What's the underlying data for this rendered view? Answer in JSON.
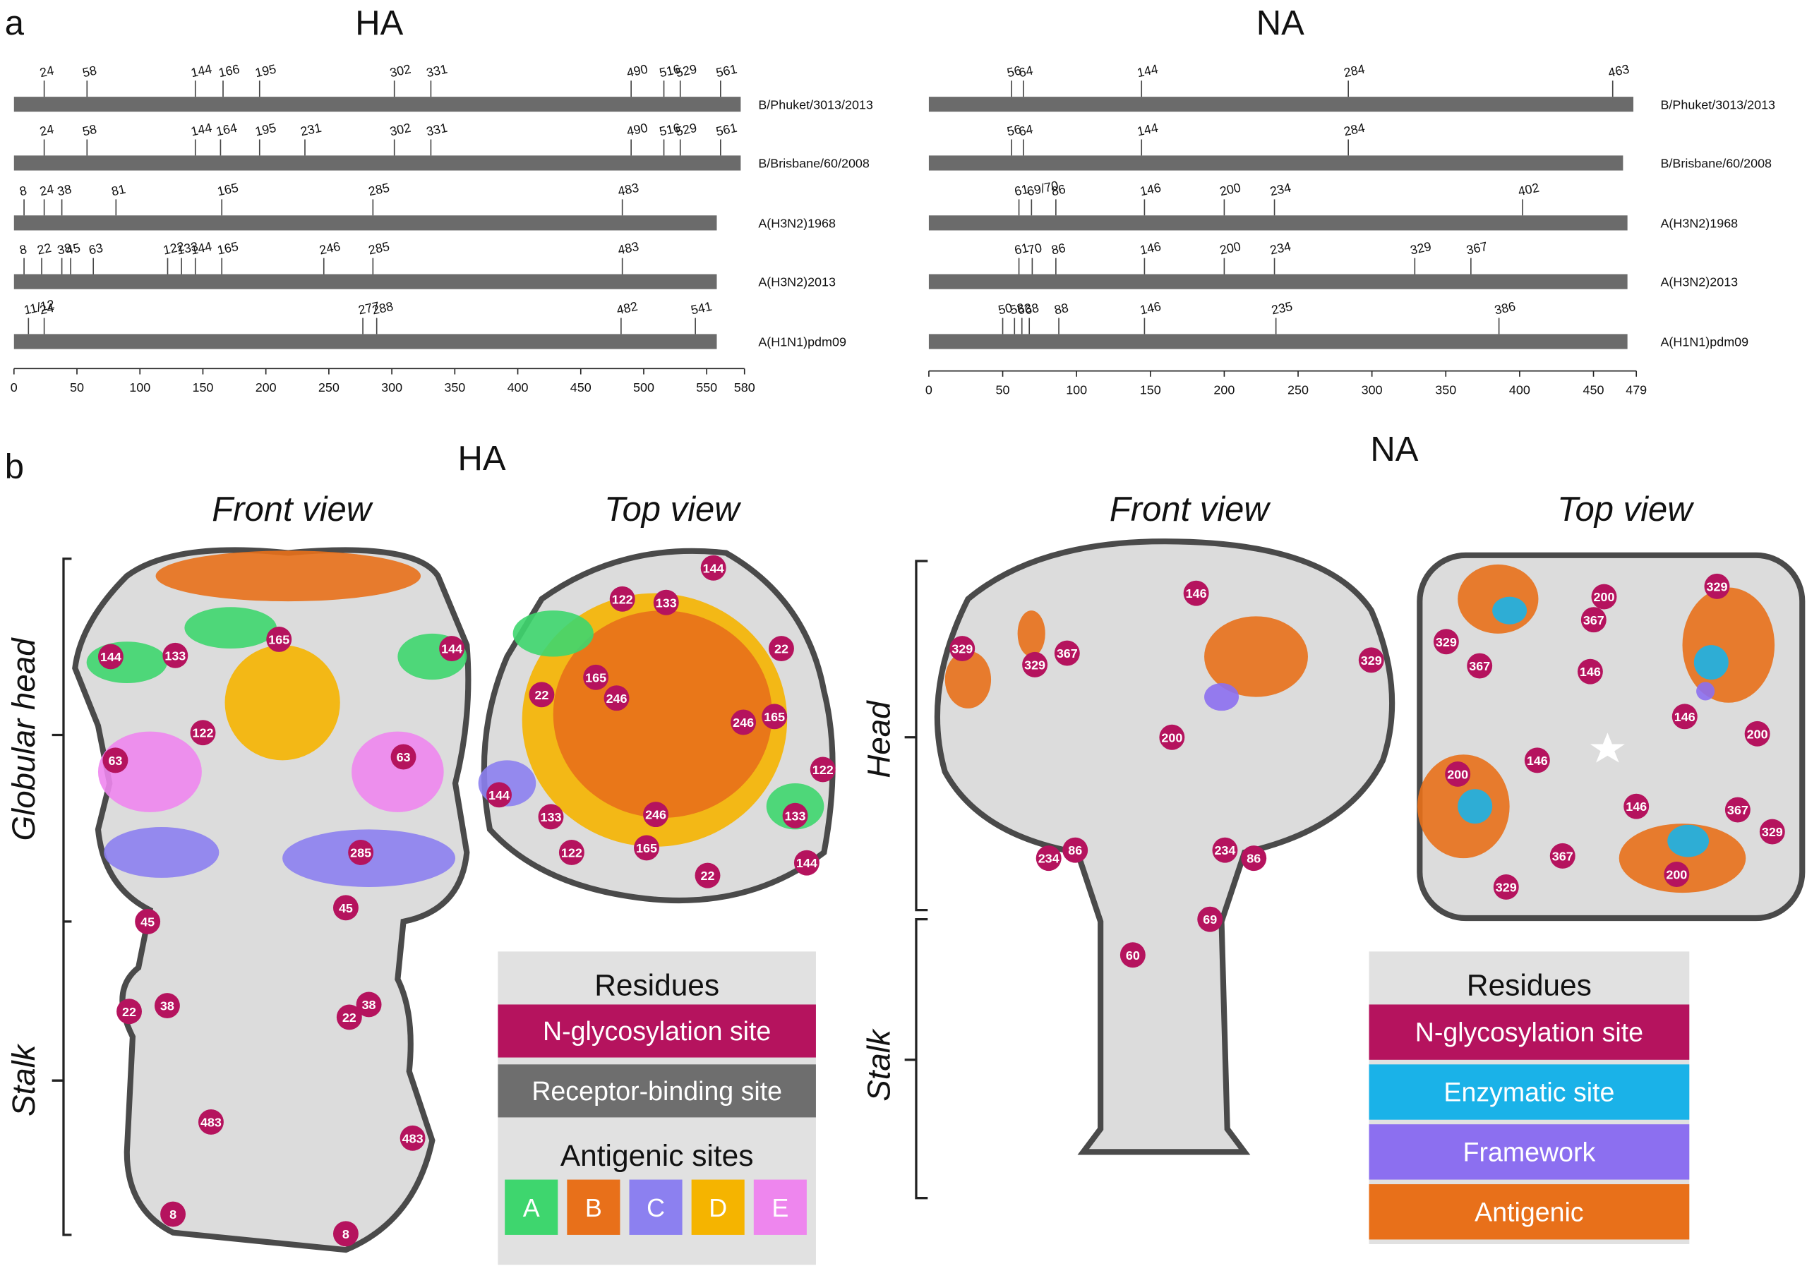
{
  "panel_labels": [
    "a",
    "b"
  ],
  "chart_data": [
    {
      "type": "track",
      "title": "HA",
      "bar_color": "#6b6b6b",
      "xlim": [
        0,
        580
      ],
      "xticks": [
        0,
        50,
        100,
        150,
        200,
        250,
        300,
        350,
        400,
        450,
        500,
        550,
        580
      ],
      "tracks": [
        {
          "name": "B/Phuket/3013/2013",
          "length": 577,
          "sites": [
            24,
            58,
            144,
            166,
            195,
            302,
            331,
            490,
            516,
            529,
            561
          ]
        },
        {
          "name": "B/Brisbane/60/2008",
          "length": 577,
          "sites": [
            24,
            58,
            144,
            164,
            195,
            231,
            302,
            331,
            490,
            516,
            529,
            561
          ]
        },
        {
          "name": "A(H3N2)1968",
          "length": 558,
          "sites": [
            8,
            24,
            38,
            81,
            165,
            285,
            483
          ]
        },
        {
          "name": "A(H3N2)2013",
          "length": 558,
          "sites": [
            8,
            22,
            38,
            45,
            63,
            122,
            133,
            144,
            165,
            246,
            285,
            483
          ]
        },
        {
          "name": "A(H1N1)pdm09",
          "length": 558,
          "sites": [
            {
              "value": 11.5,
              "label": "11/12"
            },
            24,
            277,
            288,
            482,
            541
          ]
        }
      ]
    },
    {
      "type": "track",
      "title": "NA",
      "bar_color": "#6b6b6b",
      "xlim": [
        0,
        479
      ],
      "xticks": [
        0,
        50,
        100,
        150,
        200,
        250,
        300,
        350,
        400,
        450,
        479
      ],
      "tracks": [
        {
          "name": "B/Phuket/3013/2013",
          "length": 477,
          "sites": [
            56,
            64,
            144,
            284,
            463
          ]
        },
        {
          "name": "B/Brisbane/60/2008",
          "length": 470,
          "sites": [
            56,
            64,
            144,
            284
          ]
        },
        {
          "name": "A(H3N2)1968",
          "length": 473,
          "sites": [
            61,
            {
              "value": 69.5,
              "label": "69/70"
            },
            86,
            146,
            200,
            234,
            402
          ]
        },
        {
          "name": "A(H3N2)2013",
          "length": 473,
          "sites": [
            61,
            70,
            86,
            146,
            200,
            234,
            329,
            367
          ]
        },
        {
          "name": "A(H1N1)pdm09",
          "length": 473,
          "sites": [
            50,
            58,
            63,
            68,
            88,
            146,
            235,
            386
          ]
        }
      ]
    }
  ],
  "panel_b": {
    "ha_title": "HA",
    "na_title": "NA",
    "views": [
      "Front view",
      "Top view",
      "Front view",
      "Top view"
    ],
    "ha_regions": [
      "Globular head",
      "Stalk"
    ],
    "na_regions": [
      "Head",
      "Stalk"
    ],
    "ha_front_sites": [
      144,
      133,
      165,
      144,
      122,
      63,
      63,
      285,
      45,
      45,
      22,
      38,
      22,
      38,
      483,
      483,
      8,
      8
    ],
    "ha_top_sites": [
      144,
      122,
      133,
      22,
      165,
      246,
      22,
      246,
      165,
      122,
      144,
      133,
      133,
      246,
      122,
      165,
      22,
      144
    ],
    "na_front_sites": [
      146,
      329,
      329,
      367,
      329,
      200,
      234,
      86,
      234,
      86,
      69,
      60
    ],
    "na_top_sites": [
      200,
      329,
      329,
      367,
      367,
      146,
      146,
      200,
      200,
      146,
      146,
      367,
      329,
      367,
      329,
      200
    ],
    "ha_legend": {
      "residues_title": "Residues",
      "residues": [
        {
          "label": "N-glycosylation site",
          "color": "#b5135e"
        },
        {
          "label": "Receptor-binding site",
          "color": "#6e6e6e"
        }
      ],
      "antigenic_title": "Antigenic sites",
      "antigenic": [
        {
          "label": "A",
          "color": "#3ed66e"
        },
        {
          "label": "B",
          "color": "#e8701a"
        },
        {
          "label": "C",
          "color": "#8c80f0"
        },
        {
          "label": "D",
          "color": "#f5b400"
        },
        {
          "label": "E",
          "color": "#ee86ee"
        }
      ]
    },
    "na_legend": {
      "residues_title": "Residues",
      "residues": [
        {
          "label": "N-glycosylation site",
          "color": "#b5135e"
        },
        {
          "label": "Enzymatic site",
          "color": "#1ab2e8"
        },
        {
          "label": "Framework",
          "color": "#8c6ff0"
        },
        {
          "label": "Antigenic",
          "color": "#e8701a"
        }
      ]
    }
  }
}
